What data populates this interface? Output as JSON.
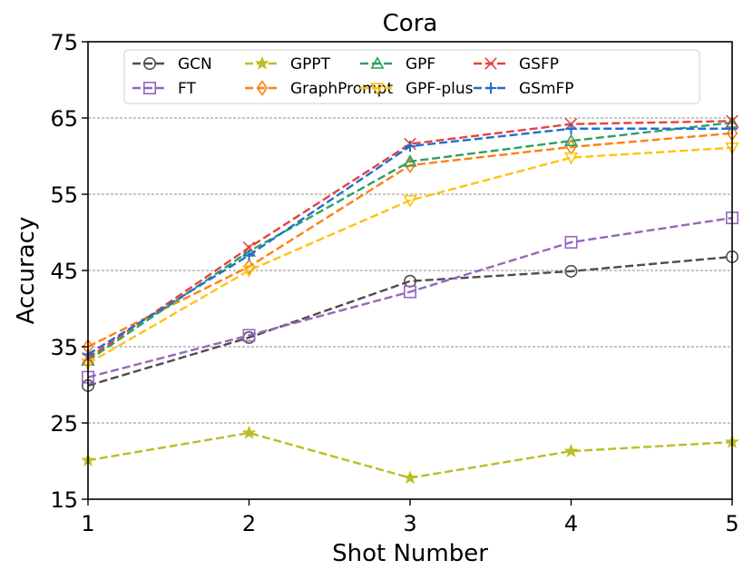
{
  "chart_data": {
    "type": "line",
    "title": "Cora",
    "xlabel": "Shot Number",
    "ylabel": "Accuracy",
    "x": [
      1,
      2,
      3,
      4,
      5
    ],
    "xlim": [
      1,
      5
    ],
    "ylim": [
      15,
      75
    ],
    "xticks": [
      "1",
      "2",
      "3",
      "4",
      "5"
    ],
    "yticks": [
      "15",
      "25",
      "35",
      "45",
      "55",
      "65",
      "75"
    ],
    "grid": "horizontal dashed",
    "legend_position": "top",
    "series": [
      {
        "name": "GCN",
        "color": "#4d4d4d",
        "marker": "circle",
        "values": [
          29.9,
          36.2,
          43.6,
          44.9,
          46.8
        ]
      },
      {
        "name": "FT",
        "color": "#9467bd",
        "marker": "square",
        "values": [
          31.0,
          36.5,
          42.2,
          48.7,
          51.9
        ]
      },
      {
        "name": "GPPT",
        "color": "#bcbd22",
        "marker": "star",
        "values": [
          20.1,
          23.7,
          17.8,
          21.3,
          22.5
        ]
      },
      {
        "name": "GraphPrompt",
        "color": "#ff7f0e",
        "marker": "diamond",
        "values": [
          35.0,
          45.5,
          58.8,
          61.2,
          63.0
        ]
      },
      {
        "name": "GPF",
        "color": "#2ca25f",
        "marker": "triangle-up",
        "values": [
          33.2,
          47.5,
          59.3,
          62.0,
          64.4
        ]
      },
      {
        "name": "GPF-plus",
        "color": "#ffc20e",
        "marker": "triangle-down",
        "values": [
          32.8,
          45.0,
          54.2,
          59.8,
          61.1
        ]
      },
      {
        "name": "GSFP",
        "color": "#e8413c",
        "marker": "x",
        "values": [
          33.5,
          48.0,
          61.6,
          64.2,
          64.6
        ]
      },
      {
        "name": "GSmFP",
        "color": "#1f6fd1",
        "marker": "plus",
        "values": [
          34.0,
          47.0,
          61.3,
          63.6,
          63.6
        ]
      }
    ]
  }
}
